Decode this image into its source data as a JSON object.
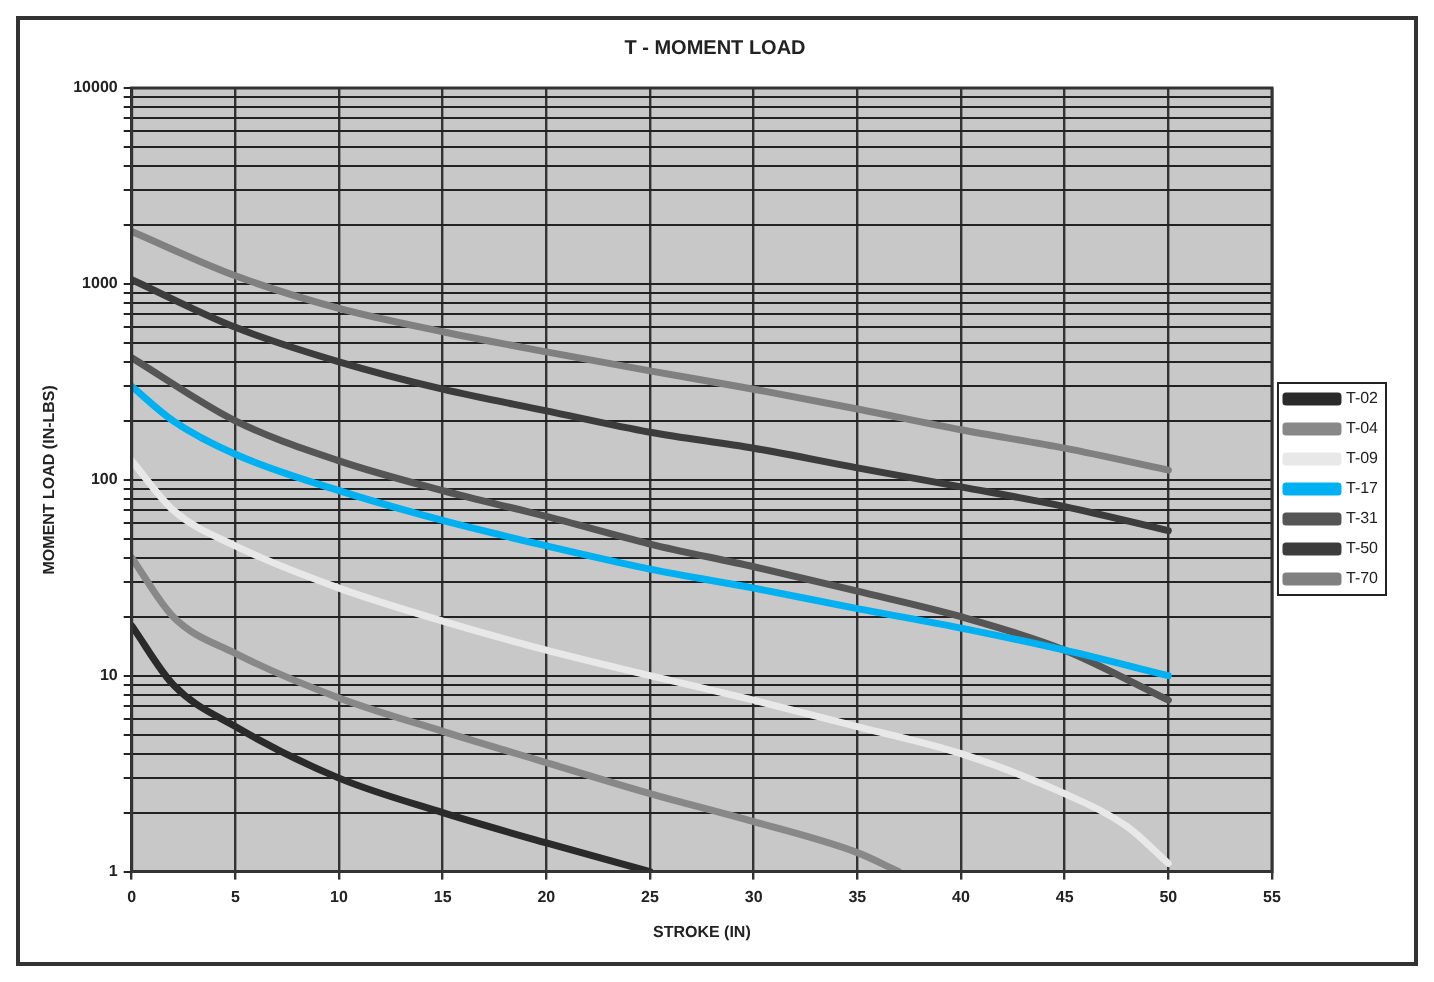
{
  "chart_data": {
    "type": "line",
    "title": "T - MOMENT LOAD",
    "xlabel": "STROKE (IN)",
    "ylabel": "MOMENT LOAD (IN-LBS)",
    "log": "y",
    "grid": true,
    "legend": "right",
    "marker": "none",
    "line_style": "solid",
    "xlim": [
      0,
      55
    ],
    "xticks": [
      0,
      5,
      10,
      15,
      20,
      25,
      30,
      35,
      40,
      45,
      50,
      55
    ],
    "ylim": [
      1,
      10000
    ],
    "yticks": [
      1,
      {
        "value": 2,
        "label": null
      },
      {
        "value": 3,
        "label": null
      },
      {
        "value": 4,
        "label": null
      },
      {
        "value": 5,
        "label": null
      },
      {
        "value": 6,
        "label": null
      },
      {
        "value": 7,
        "label": null
      },
      {
        "value": 8,
        "label": null
      },
      {
        "value": 9,
        "label": null
      },
      10,
      {
        "value": 20,
        "label": null
      },
      {
        "value": 30,
        "label": null
      },
      {
        "value": 40,
        "label": null
      },
      {
        "value": 50,
        "label": null
      },
      {
        "value": 60,
        "label": null
      },
      {
        "value": 70,
        "label": null
      },
      {
        "value": 80,
        "label": null
      },
      {
        "value": 90,
        "label": null
      },
      100,
      {
        "value": 200,
        "label": null
      },
      {
        "value": 300,
        "label": null
      },
      {
        "value": 400,
        "label": null
      },
      {
        "value": 500,
        "label": null
      },
      {
        "value": 600,
        "label": null
      },
      {
        "value": 700,
        "label": null
      },
      {
        "value": 800,
        "label": null
      },
      {
        "value": 900,
        "label": null
      },
      1000,
      {
        "value": 2000,
        "label": null
      },
      {
        "value": 3000,
        "label": null
      },
      {
        "value": 4000,
        "label": null
      },
      {
        "value": 5000,
        "label": null
      },
      {
        "value": 6000,
        "label": null
      },
      {
        "value": 7000,
        "label": null
      },
      {
        "value": 8000,
        "label": null
      },
      {
        "value": 9000,
        "label": null
      },
      10000
    ],
    "series": [
      {
        "name": "T-02",
        "color": "#2a2a2a",
        "x": [
          0,
          2,
          5,
          10,
          15,
          20,
          25
        ],
        "values": [
          18,
          9,
          5.5,
          3,
          2,
          1.4,
          1
        ]
      },
      {
        "name": "T-04",
        "color": "#888888",
        "x": [
          0,
          2,
          5,
          10,
          15,
          20,
          25,
          30,
          35,
          37
        ],
        "values": [
          40,
          20,
          13,
          7.7,
          5.2,
          3.6,
          2.5,
          1.8,
          1.25,
          1
        ]
      },
      {
        "name": "T-09",
        "color": "#e8e8e8",
        "x": [
          0,
          2,
          5,
          10,
          15,
          20,
          25,
          30,
          35,
          40,
          45,
          48,
          50
        ],
        "values": [
          125,
          70,
          46,
          28,
          19,
          13.5,
          10,
          7.5,
          5.5,
          4,
          2.5,
          1.7,
          1.1
        ]
      },
      {
        "name": "T-17",
        "color": "#00b0f0",
        "x": [
          0,
          2,
          5,
          10,
          15,
          20,
          25,
          30,
          35,
          40,
          45,
          50
        ],
        "values": [
          300,
          200,
          135,
          88,
          62,
          46,
          35,
          28,
          22,
          17.5,
          13.5,
          10
        ]
      },
      {
        "name": "T-31",
        "color": "#555555",
        "x": [
          0,
          5,
          10,
          15,
          20,
          25,
          30,
          35,
          40,
          45,
          50
        ],
        "values": [
          420,
          200,
          125,
          88,
          65,
          47,
          36,
          27,
          20,
          13.5,
          7.5
        ]
      },
      {
        "name": "T-50",
        "color": "#3c3c3c",
        "x": [
          0,
          5,
          10,
          15,
          20,
          25,
          30,
          35,
          40,
          45,
          50
        ],
        "values": [
          1050,
          600,
          400,
          290,
          225,
          175,
          145,
          115,
          92,
          73,
          55
        ]
      },
      {
        "name": "T-70",
        "color": "#808080",
        "x": [
          0,
          5,
          10,
          15,
          20,
          25,
          30,
          35,
          40,
          45,
          50
        ],
        "values": [
          1850,
          1100,
          750,
          570,
          450,
          360,
          290,
          230,
          180,
          145,
          112
        ]
      }
    ]
  }
}
